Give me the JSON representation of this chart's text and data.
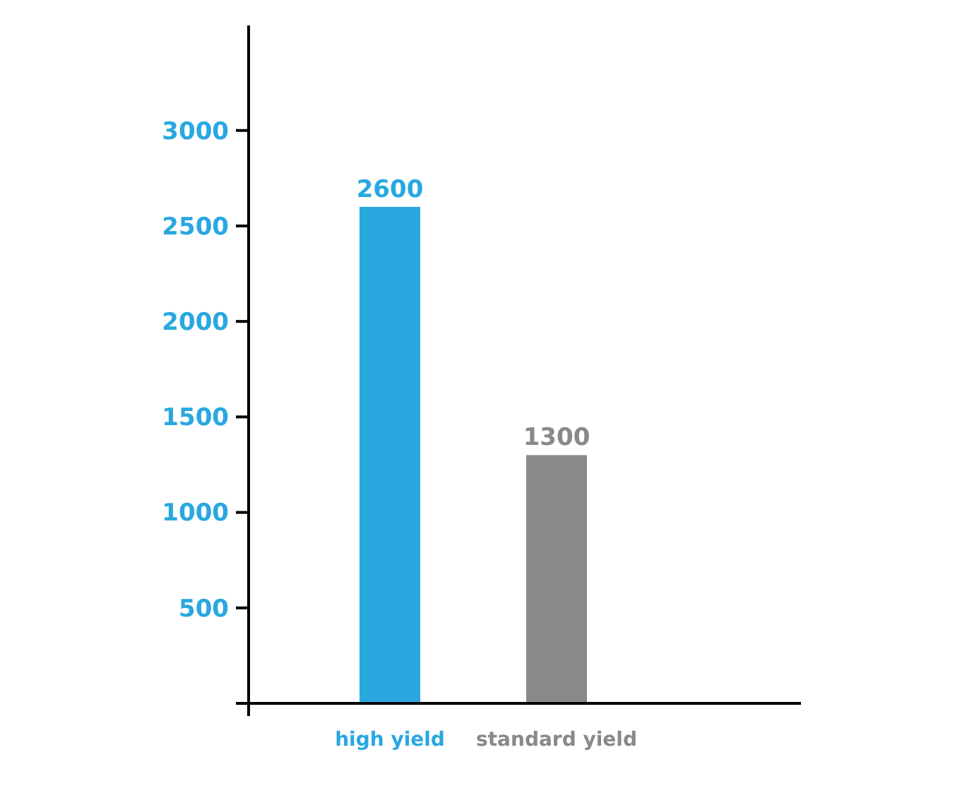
{
  "chart_data": {
    "type": "bar",
    "categories": [
      "high yield",
      "standard yield"
    ],
    "values": [
      2600,
      1300
    ],
    "colors": [
      "#29a8e0",
      "#898989"
    ],
    "ylim": [
      0,
      3550
    ],
    "yticks": [
      {
        "value": 0,
        "label": null
      },
      500,
      1000,
      1500,
      2000,
      2500,
      3000
    ],
    "data_labels": true
  }
}
